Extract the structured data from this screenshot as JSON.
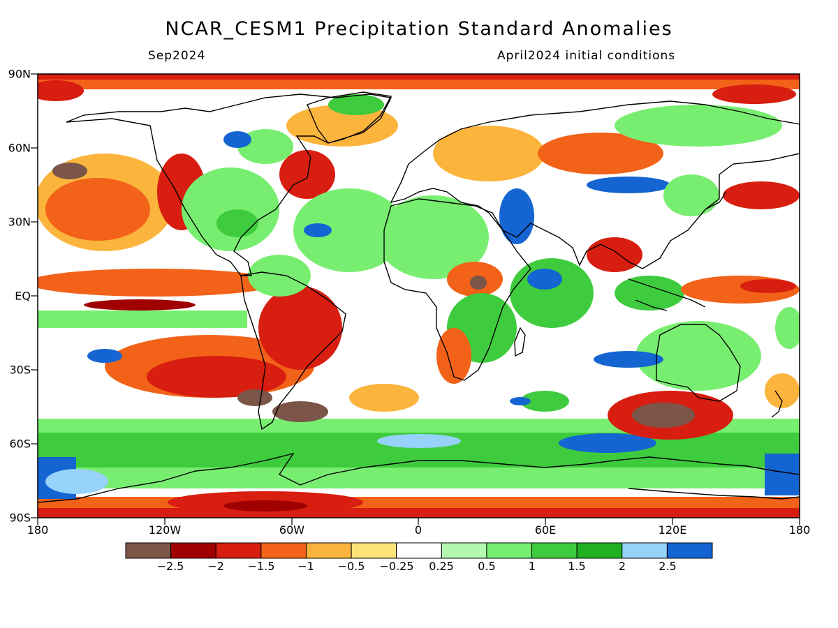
{
  "title": "NCAR_CESM1 Precipitation Standard Anomalies",
  "subtitle_left": "Sep2024",
  "subtitle_right": "April2024 initial conditions",
  "lat_labels": [
    "90N",
    "60N",
    "30N",
    "EQ",
    "30S",
    "60S",
    "90S"
  ],
  "lon_labels": [
    "180",
    "120W",
    "60W",
    "0",
    "60E",
    "120E",
    "180"
  ],
  "colorbar": {
    "labels": [
      "−2.5",
      "−2",
      "−1.5",
      "−1",
      "−0.5",
      "−0.25",
      "0.25",
      "0.5",
      "1",
      "1.5",
      "2",
      "2.5"
    ],
    "colors": [
      "#7a5548",
      "#a00000",
      "#d81e10",
      "#f26218",
      "#fbb43c",
      "#fde27a",
      "#ffffff",
      "#b4f7b0",
      "#78ee70",
      "#3ecc3e",
      "#20b020",
      "#96d2fa",
      "#1464d2"
    ]
  }
}
